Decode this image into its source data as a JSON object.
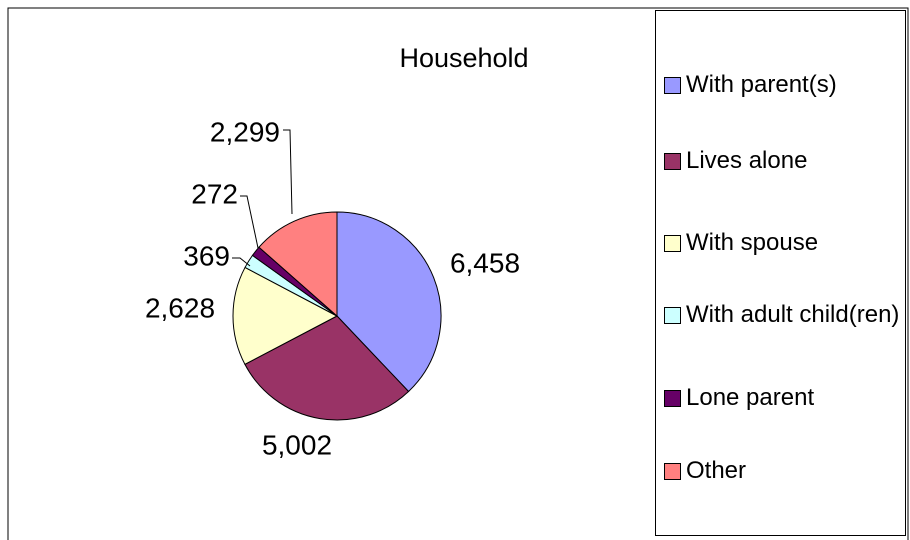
{
  "chart_data": {
    "type": "pie",
    "title": "Household",
    "categories": [
      "With parent(s)",
      "Lives alone",
      "With spouse",
      "With adult child(ren)",
      "Lone parent",
      "Other"
    ],
    "values": [
      6458,
      5002,
      2628,
      369,
      272,
      2299
    ],
    "value_labels": [
      "6,458",
      "5,002",
      "2,628",
      "369",
      "272",
      "2,299"
    ],
    "colors": [
      "#9999ff",
      "#993366",
      "#ffffcc",
      "#ccffff",
      "#660066",
      "#ff8080"
    ],
    "legend": "right"
  }
}
